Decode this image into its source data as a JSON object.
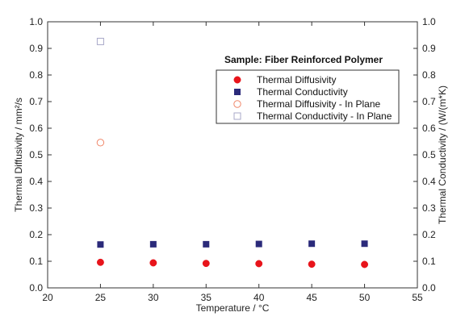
{
  "chart_data": {
    "type": "scatter",
    "annotation": "Sample: Fiber Reinforced Polymer",
    "xlabel": "Temperature / °C",
    "ylabel_left": "Thermal Diffusivity / mm²/s",
    "ylabel_right": "Thermal Conductivity / (W/(m*K)",
    "xlim": [
      20,
      55
    ],
    "xticks": [
      20,
      25,
      30,
      35,
      40,
      45,
      50,
      55
    ],
    "ylim_left": [
      0,
      1.0
    ],
    "ylim_right": [
      0,
      1.0
    ],
    "yticks": [
      "0.0",
      "0.1",
      "0.2",
      "0.3",
      "0.4",
      "0.5",
      "0.6",
      "0.7",
      "0.8",
      "0.9",
      "1.0"
    ],
    "grid": false,
    "legend_position": "upper-right",
    "series": [
      {
        "name": "Thermal Diffusivity",
        "axis": "left",
        "marker": "circle-filled",
        "color": "#e8141b",
        "x": [
          25,
          30,
          35,
          40,
          45,
          50
        ],
        "y": [
          0.096,
          0.094,
          0.092,
          0.091,
          0.089,
          0.088
        ]
      },
      {
        "name": "Thermal Conductivity",
        "axis": "right",
        "marker": "square-filled",
        "color": "#2b2a7a",
        "x": [
          25,
          30,
          35,
          40,
          45,
          50
        ],
        "y": [
          0.163,
          0.164,
          0.164,
          0.165,
          0.166,
          0.166
        ]
      },
      {
        "name": "Thermal Diffusivity - In Plane",
        "axis": "left",
        "marker": "circle-open",
        "color": "#f0876a",
        "x": [
          25
        ],
        "y": [
          0.546
        ]
      },
      {
        "name": "Thermal Conductivity - In Plane",
        "axis": "right",
        "marker": "square-open",
        "color": "#a8a8c8",
        "x": [
          25
        ],
        "y": [
          0.926
        ]
      }
    ]
  }
}
